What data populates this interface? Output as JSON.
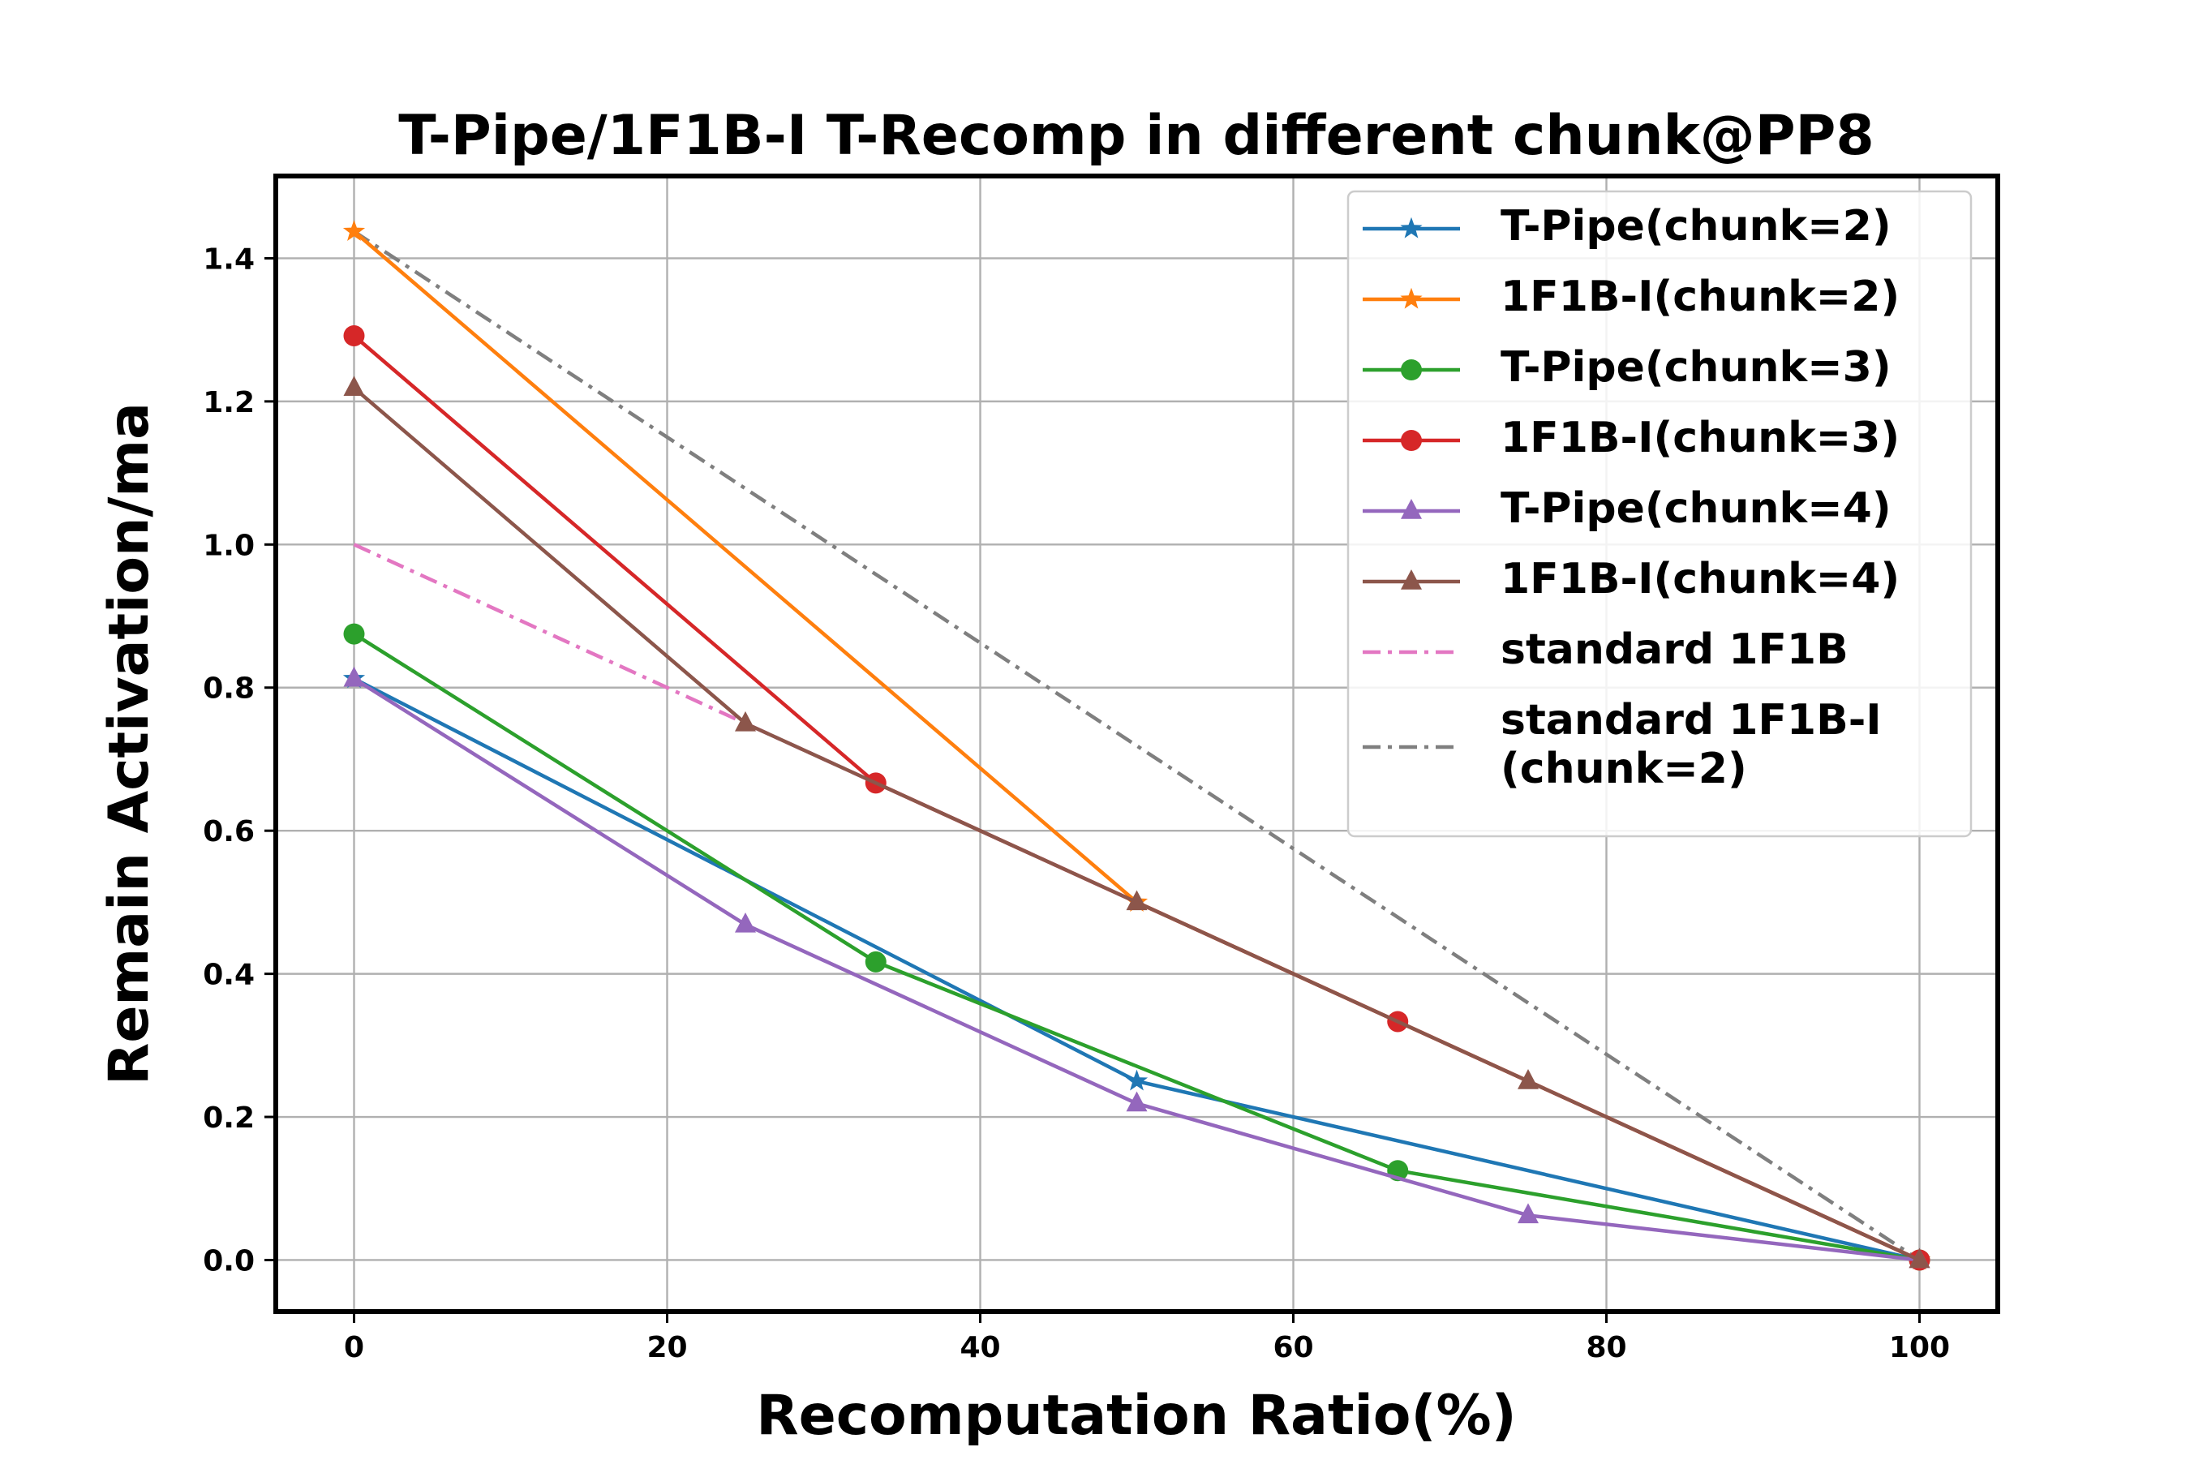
{
  "chart_data": {
    "type": "line",
    "title": "T-Pipe/1F1B-I T-Recomp in different chunk@PP8",
    "xlabel": "Recomputation Ratio(%)",
    "ylabel": "Remain Activation/ma",
    "xlim": [
      -5,
      105
    ],
    "ylim": [
      -0.072,
      1.515
    ],
    "xticks": [
      0,
      20,
      40,
      60,
      80,
      100
    ],
    "yticks": [
      0.0,
      0.2,
      0.4,
      0.6,
      0.8,
      1.0,
      1.2,
      1.4
    ],
    "grid": true,
    "legend_position": "top-right",
    "series": [
      {
        "name": "T-Pipe(chunk=2)",
        "color": "#1f77b4",
        "marker": "star",
        "dash": "solid",
        "x": [
          0,
          50,
          100
        ],
        "y": [
          0.8125,
          0.25,
          0.0
        ]
      },
      {
        "name": "1F1B-I(chunk=2)",
        "color": "#ff7f0e",
        "marker": "star",
        "dash": "solid",
        "x": [
          0,
          50,
          100
        ],
        "y": [
          1.4375,
          0.5,
          0.0
        ]
      },
      {
        "name": "T-Pipe(chunk=3)",
        "color": "#2ca02c",
        "marker": "circle",
        "dash": "solid",
        "x": [
          0,
          33.33,
          66.67,
          100
        ],
        "y": [
          0.875,
          0.4167,
          0.125,
          0.0
        ]
      },
      {
        "name": "1F1B-I(chunk=3)",
        "color": "#d62728",
        "marker": "circle",
        "dash": "solid",
        "x": [
          0,
          33.33,
          66.67,
          100
        ],
        "y": [
          1.2917,
          0.6667,
          0.3333,
          0.0
        ]
      },
      {
        "name": "T-Pipe(chunk=4)",
        "color": "#9467bd",
        "marker": "triangle",
        "dash": "solid",
        "x": [
          0,
          25,
          50,
          75,
          100
        ],
        "y": [
          0.8125,
          0.4688,
          0.2188,
          0.0625,
          0.0
        ]
      },
      {
        "name": "1F1B-I(chunk=4)",
        "color": "#8c564b",
        "marker": "triangle",
        "dash": "solid",
        "x": [
          0,
          25,
          50,
          75,
          100
        ],
        "y": [
          1.2188,
          0.75,
          0.5,
          0.25,
          0.0
        ]
      },
      {
        "name": "standard 1F1B",
        "color": "#e377c2",
        "marker": "none",
        "dash": "dashdot",
        "x": [
          0,
          100
        ],
        "y": [
          1.0,
          0.0
        ]
      },
      {
        "name": "standard 1F1B-I\n(chunk=2)",
        "color": "#7f7f7f",
        "marker": "none",
        "dash": "dashdot",
        "x": [
          0,
          100
        ],
        "y": [
          1.4375,
          0.0
        ]
      }
    ]
  }
}
